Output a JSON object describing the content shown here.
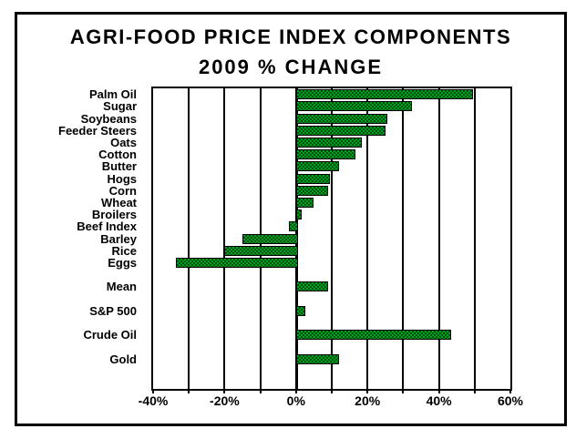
{
  "title": {
    "line1": "AGRI-FOOD PRICE INDEX COMPONENTS",
    "line2": "2009 % CHANGE"
  },
  "colors": {
    "bar_fill_light": "#00a31f",
    "bar_fill_dark": "#004e0f",
    "bar_border": "#000000",
    "text": "#000000",
    "background": "#ffffff"
  },
  "chart_data": {
    "type": "bar",
    "orientation": "horizontal",
    "title": "AGRI-FOOD PRICE INDEX COMPONENTS 2009 % CHANGE",
    "xlabel": "",
    "ylabel": "",
    "xlim": [
      -40,
      60
    ],
    "grid": true,
    "gridline_step": 10,
    "legend": "none",
    "total_rows": 25,
    "x_tick_labels": [
      {
        "value": -40,
        "label": "-40%"
      },
      {
        "value": -20,
        "label": "-20%"
      },
      {
        "value": 0,
        "label": "0%"
      },
      {
        "value": 20,
        "label": "20%"
      },
      {
        "value": 40,
        "label": "40%"
      },
      {
        "value": 60,
        "label": "60%"
      }
    ],
    "items": [
      {
        "label": "Palm Oil",
        "value": 49,
        "row": 0
      },
      {
        "label": "Sugar",
        "value": 32,
        "row": 1
      },
      {
        "label": "Soybeans",
        "value": 25,
        "row": 2
      },
      {
        "label": "Feeder Steers",
        "value": 24.5,
        "row": 3
      },
      {
        "label": "Oats",
        "value": 18,
        "row": 4
      },
      {
        "label": "Cotton",
        "value": 16,
        "row": 5
      },
      {
        "label": "Butter",
        "value": 11.5,
        "row": 6
      },
      {
        "label": "Hogs",
        "value": 9,
        "row": 7
      },
      {
        "label": "Corn",
        "value": 8.5,
        "row": 8
      },
      {
        "label": "Wheat",
        "value": 4.5,
        "row": 9
      },
      {
        "label": "Broilers",
        "value": 1,
        "row": 10
      },
      {
        "label": "Beef Index",
        "value": -2,
        "row": 11
      },
      {
        "label": "Barley",
        "value": -15,
        "row": 12
      },
      {
        "label": "Rice",
        "value": -20,
        "row": 13
      },
      {
        "label": "Eggs",
        "value": -33.5,
        "row": 14
      },
      {
        "label": "Mean",
        "value": 8.5,
        "row": 16
      },
      {
        "label": "S&P 500",
        "value": 2,
        "row": 18
      },
      {
        "label": "Crude Oil",
        "value": 43,
        "row": 20
      },
      {
        "label": "Gold",
        "value": 11.5,
        "row": 22
      }
    ]
  }
}
